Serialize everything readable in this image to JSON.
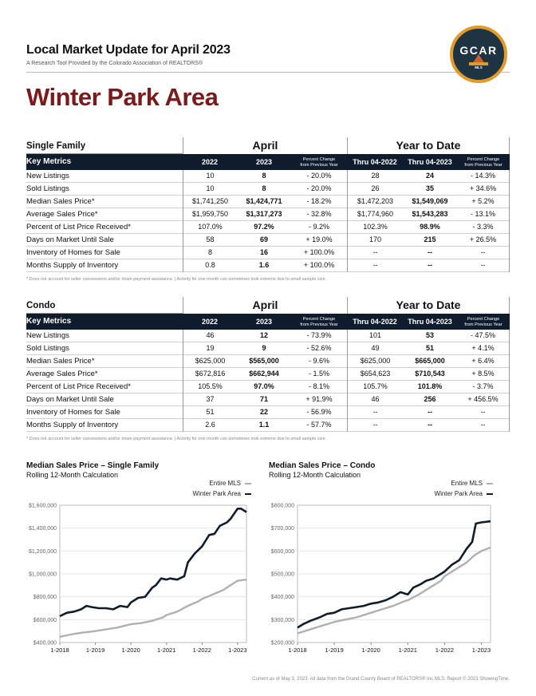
{
  "header": {
    "title": "Local Market Update for April 2023",
    "subtitle": "A Research Tool Provided by the Colorado Association of REALTORS®",
    "area": "Winter Park Area",
    "logo_text": "GCAR",
    "logo_sub": "MLS"
  },
  "columns": {
    "group_month": "April",
    "group_ytd": "Year to Date",
    "key_metrics": "Key Metrics",
    "y1": "2022",
    "y2": "2023",
    "pct_line1": "Percent Change",
    "pct_line2": "from Previous Year",
    "ytd1": "Thru 04-2022",
    "ytd2": "Thru 04-2023"
  },
  "single_family": {
    "label": "Single Family",
    "rows": [
      {
        "label": "New Listings",
        "v": [
          "10",
          "8",
          "- 20.0%",
          "28",
          "24",
          "- 14.3%"
        ]
      },
      {
        "label": "Sold Listings",
        "v": [
          "10",
          "8",
          "- 20.0%",
          "26",
          "35",
          "+ 34.6%"
        ]
      },
      {
        "label": "Median Sales Price*",
        "v": [
          "$1,741,250",
          "$1,424,771",
          "- 18.2%",
          "$1,472,203",
          "$1,549,069",
          "+ 5.2%"
        ]
      },
      {
        "label": "Average Sales Price*",
        "v": [
          "$1,959,750",
          "$1,317,273",
          "- 32.8%",
          "$1,774,960",
          "$1,543,283",
          "- 13.1%"
        ]
      },
      {
        "label": "Percent of List Price Received*",
        "v": [
          "107.0%",
          "97.2%",
          "- 9.2%",
          "102.3%",
          "98.9%",
          "- 3.3%"
        ]
      },
      {
        "label": "Days on Market Until Sale",
        "v": [
          "58",
          "69",
          "+ 19.0%",
          "170",
          "215",
          "+ 26.5%"
        ]
      },
      {
        "label": "Inventory of Homes for Sale",
        "v": [
          "8",
          "16",
          "+ 100.0%",
          "--",
          "--",
          "--"
        ]
      },
      {
        "label": "Months Supply of Inventory",
        "v": [
          "0.8",
          "1.6",
          "+ 100.0%",
          "--",
          "--",
          "--"
        ]
      }
    ]
  },
  "condo": {
    "label": "Condo",
    "rows": [
      {
        "label": "New Listings",
        "v": [
          "46",
          "12",
          "- 73.9%",
          "101",
          "53",
          "- 47.5%"
        ]
      },
      {
        "label": "Sold Listings",
        "v": [
          "19",
          "9",
          "- 52.6%",
          "49",
          "51",
          "+ 4.1%"
        ]
      },
      {
        "label": "Median Sales Price*",
        "v": [
          "$625,000",
          "$565,000",
          "- 9.6%",
          "$625,000",
          "$665,000",
          "+ 6.4%"
        ]
      },
      {
        "label": "Average Sales Price*",
        "v": [
          "$672,816",
          "$662,944",
          "- 1.5%",
          "$654,623",
          "$710,543",
          "+ 8.5%"
        ]
      },
      {
        "label": "Percent of List Price Received*",
        "v": [
          "105.5%",
          "97.0%",
          "- 8.1%",
          "105.7%",
          "101.8%",
          "- 3.7%"
        ]
      },
      {
        "label": "Days on Market Until Sale",
        "v": [
          "37",
          "71",
          "+ 91.9%",
          "46",
          "256",
          "+ 456.5%"
        ]
      },
      {
        "label": "Inventory of Homes for Sale",
        "v": [
          "51",
          "22",
          "- 56.9%",
          "--",
          "--",
          "--"
        ]
      },
      {
        "label": "Months Supply of Inventory",
        "v": [
          "2.6",
          "1.1",
          "- 57.7%",
          "--",
          "--",
          "--"
        ]
      }
    ]
  },
  "footnote": "* Does not account for seller concessions and/or down payment assistance.  |  Activity for one month can sometimes look extreme due to small sample size.",
  "chart_data": [
    {
      "type": "line",
      "title": "Median Sales Price – Single Family",
      "subtitle": "Rolling 12-Month Calculation",
      "x_ticks": [
        "1-2018",
        "1-2019",
        "1-2020",
        "1-2021",
        "1-2022",
        "1-2023"
      ],
      "y_ticks": [
        "$400,000",
        "$600,000",
        "$800,000",
        "$1,000,000",
        "$1,200,000",
        "$1,400,000",
        "$1,600,000"
      ],
      "ylim": [
        400000,
        1600000
      ],
      "x_range": [
        2018.0,
        2023.25
      ],
      "series": [
        {
          "name": "Entire MLS",
          "color": "#b0b0b0",
          "x": [
            2018.0,
            2018.3,
            2018.6,
            2019.0,
            2019.3,
            2019.6,
            2020.0,
            2020.3,
            2020.6,
            2020.9,
            2021.0,
            2021.3,
            2021.6,
            2021.9,
            2022.0,
            2022.3,
            2022.6,
            2022.8,
            2023.0,
            2023.25
          ],
          "y": [
            450000,
            470000,
            485000,
            500000,
            515000,
            530000,
            560000,
            570000,
            590000,
            620000,
            640000,
            670000,
            720000,
            760000,
            780000,
            820000,
            860000,
            900000,
            940000,
            950000
          ]
        },
        {
          "name": "Winter Park Area",
          "color": "#0f1c2e",
          "x": [
            2018.0,
            2018.2,
            2018.4,
            2018.6,
            2018.75,
            2018.9,
            2019.1,
            2019.3,
            2019.5,
            2019.7,
            2019.9,
            2020.0,
            2020.2,
            2020.4,
            2020.6,
            2020.7,
            2020.85,
            2021.0,
            2021.1,
            2021.3,
            2021.5,
            2021.6,
            2021.8,
            2022.0,
            2022.2,
            2022.35,
            2022.5,
            2022.7,
            2022.8,
            2023.0,
            2023.1,
            2023.25
          ],
          "y": [
            630000,
            660000,
            670000,
            690000,
            720000,
            710000,
            700000,
            700000,
            690000,
            720000,
            710000,
            750000,
            790000,
            800000,
            880000,
            900000,
            960000,
            950000,
            960000,
            950000,
            980000,
            1100000,
            1180000,
            1240000,
            1340000,
            1350000,
            1420000,
            1450000,
            1480000,
            1570000,
            1570000,
            1540000
          ]
        }
      ]
    },
    {
      "type": "line",
      "title": "Median Sales Price – Condo",
      "subtitle": "Rolling 12-Month Calculation",
      "x_ticks": [
        "1-2018",
        "1-2019",
        "1-2020",
        "1-2021",
        "1-2022",
        "1-2023"
      ],
      "y_ticks": [
        "$200,000",
        "$300,000",
        "$400,000",
        "$500,000",
        "$600,000",
        "$700,000",
        "$800,000"
      ],
      "ylim": [
        200000,
        800000
      ],
      "x_range": [
        2018.0,
        2023.25
      ],
      "series": [
        {
          "name": "Entire MLS",
          "color": "#b0b0b0",
          "x": [
            2018.0,
            2018.3,
            2018.6,
            2019.0,
            2019.3,
            2019.6,
            2020.0,
            2020.3,
            2020.6,
            2020.9,
            2021.0,
            2021.3,
            2021.6,
            2021.9,
            2022.0,
            2022.3,
            2022.6,
            2022.8,
            2023.0,
            2023.25
          ],
          "y": [
            240000,
            255000,
            270000,
            290000,
            300000,
            310000,
            330000,
            345000,
            360000,
            380000,
            385000,
            410000,
            440000,
            470000,
            490000,
            520000,
            550000,
            580000,
            600000,
            615000
          ]
        },
        {
          "name": "Winter Park Area",
          "color": "#0f1c2e",
          "x": [
            2018.0,
            2018.15,
            2018.35,
            2018.6,
            2018.8,
            2019.0,
            2019.2,
            2019.4,
            2019.6,
            2019.8,
            2020.0,
            2020.2,
            2020.4,
            2020.6,
            2020.8,
            2021.0,
            2021.15,
            2021.35,
            2021.5,
            2021.7,
            2021.9,
            2022.0,
            2022.2,
            2022.4,
            2022.6,
            2022.75,
            2022.85,
            2023.0,
            2023.25
          ],
          "y": [
            265000,
            280000,
            295000,
            310000,
            325000,
            330000,
            345000,
            350000,
            355000,
            360000,
            370000,
            375000,
            385000,
            400000,
            420000,
            410000,
            440000,
            455000,
            470000,
            480000,
            500000,
            510000,
            540000,
            560000,
            610000,
            640000,
            720000,
            725000,
            730000
          ]
        }
      ]
    }
  ],
  "footer": "Current as of May 3, 2023. All data from the Grand County Board of REALTORS® Inc MLS. Report © 2023 ShowingTime."
}
